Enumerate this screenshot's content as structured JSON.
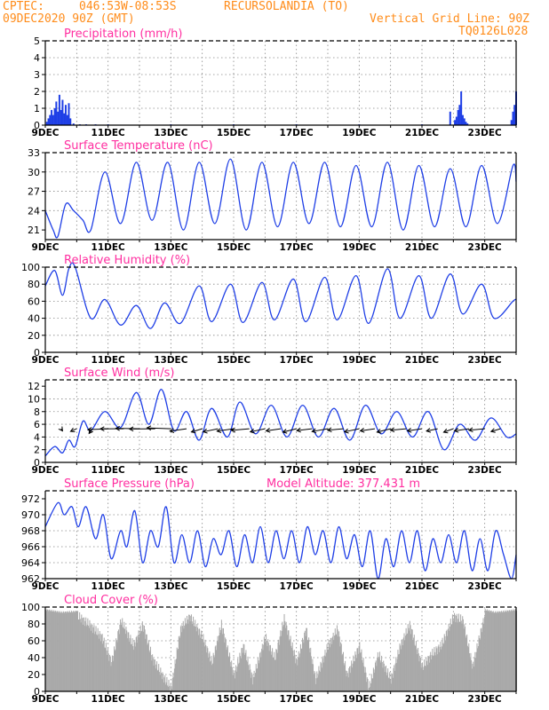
{
  "header": {
    "source": "CPTEC:",
    "coords": "046:53W-08:53S",
    "location": "RECURSOLANDIA (TO)",
    "init_time": "09DEC2020 90Z (GMT)",
    "grid_note": "Vertical Grid Line: 90Z",
    "code": "TQ0126L028"
  },
  "colors": {
    "header": "#ff8c1a",
    "title": "#ff2fa0",
    "line": "#1f3fe6",
    "cloud": "#a9a9a9",
    "wind_arrow": "#000000"
  },
  "chart_data": [
    {
      "type": "bar",
      "title": "Precipitation (mm/h)",
      "ylim": [
        0,
        5
      ],
      "yticks": [
        0,
        1,
        2,
        3,
        4,
        5
      ],
      "xticks": [
        "9DEC",
        "11DEC",
        "13DEC",
        "15DEC",
        "17DEC",
        "19DEC",
        "21DEC",
        "23DEC"
      ],
      "xlim_days": [
        0,
        15
      ],
      "x_day": [
        0.05,
        0.1,
        0.15,
        0.2,
        0.25,
        0.3,
        0.35,
        0.4,
        0.45,
        0.5,
        0.55,
        0.6,
        0.65,
        0.7,
        0.75,
        0.8,
        0.9,
        1.1,
        1.3,
        1.6,
        2.0,
        4.0,
        6.0,
        8.0,
        10.0,
        12.0,
        12.9,
        13.05,
        13.1,
        13.15,
        13.2,
        13.25,
        13.3,
        13.35,
        13.4,
        13.45,
        14.85,
        14.9,
        14.95,
        15.0
      ],
      "values": [
        0.2,
        0.4,
        0.6,
        0.9,
        0.6,
        1.0,
        1.4,
        0.8,
        1.8,
        0.9,
        1.5,
        0.7,
        1.2,
        0.6,
        1.3,
        0.4,
        0.1,
        0.05,
        0.05,
        0.05,
        0.05,
        0.05,
        0.05,
        0.05,
        0.05,
        0.05,
        0.8,
        0.3,
        0.5,
        0.9,
        1.2,
        2.0,
        0.6,
        0.4,
        0.2,
        0.1,
        0.3,
        0.8,
        1.2,
        2.0
      ]
    },
    {
      "type": "line",
      "title": "Surface Temperature (nC)",
      "ylim": [
        19.5,
        33
      ],
      "yticks": [
        21,
        24,
        27,
        30,
        33
      ],
      "xticks": [
        "9DEC",
        "11DEC",
        "13DEC",
        "15DEC",
        "17DEC",
        "19DEC",
        "21DEC",
        "23DEC"
      ],
      "xlim_days": [
        0,
        15
      ],
      "x_day": [
        0,
        0.25,
        0.4,
        0.65,
        0.9,
        1.2,
        1.45,
        1.9,
        2.4,
        2.9,
        3.4,
        3.9,
        4.4,
        4.9,
        5.4,
        5.9,
        6.4,
        6.9,
        7.4,
        7.9,
        8.4,
        8.9,
        9.4,
        9.9,
        10.4,
        10.9,
        11.4,
        11.9,
        12.4,
        12.9,
        13.4,
        13.9,
        14.4,
        14.9,
        15.0
      ],
      "values": [
        24,
        21,
        20,
        25,
        24,
        22.5,
        21,
        30,
        22,
        31.5,
        22.5,
        31.5,
        21,
        31.5,
        22,
        32,
        21,
        31.5,
        21.5,
        31.5,
        22,
        31.5,
        21.5,
        31,
        21.5,
        31.5,
        21,
        31,
        21.5,
        30.5,
        21.5,
        31,
        22,
        31,
        28.5
      ]
    },
    {
      "type": "line",
      "title": "Relative Humidity (%)",
      "ylim": [
        0,
        100
      ],
      "yticks": [
        0,
        20,
        40,
        60,
        80,
        100
      ],
      "xticks": [
        "9DEC",
        "11DEC",
        "13DEC",
        "15DEC",
        "17DEC",
        "19DEC",
        "21DEC",
        "23DEC"
      ],
      "xlim_days": [
        0,
        15
      ],
      "x_day": [
        0,
        0.3,
        0.55,
        0.75,
        0.95,
        1.45,
        1.9,
        2.4,
        2.9,
        3.35,
        3.8,
        4.3,
        4.9,
        5.3,
        5.9,
        6.3,
        6.9,
        7.3,
        7.9,
        8.3,
        8.9,
        9.3,
        9.9,
        10.3,
        10.9,
        11.3,
        11.9,
        12.3,
        12.9,
        13.3,
        13.9,
        14.3,
        14.9,
        15.0
      ],
      "values": [
        78,
        96,
        67,
        98,
        100,
        40,
        62,
        32,
        55,
        28,
        58,
        34,
        78,
        36,
        80,
        35,
        82,
        38,
        86,
        36,
        88,
        38,
        90,
        34,
        98,
        40,
        90,
        40,
        92,
        45,
        80,
        40,
        60,
        62
      ]
    },
    {
      "type": "line",
      "title": "Surface Wind (m/s)",
      "ylim": [
        0,
        13
      ],
      "yticks": [
        0,
        2,
        4,
        6,
        8,
        10,
        12
      ],
      "xticks": [
        "9DEC",
        "11DEC",
        "13DEC",
        "15DEC",
        "17DEC",
        "19DEC",
        "21DEC",
        "23DEC"
      ],
      "xlim_days": [
        0,
        15
      ],
      "x_day": [
        0,
        0.3,
        0.55,
        0.75,
        0.95,
        1.2,
        1.45,
        1.9,
        2.4,
        2.9,
        3.3,
        3.7,
        4.1,
        4.5,
        4.9,
        5.3,
        5.8,
        6.2,
        6.7,
        7.2,
        7.7,
        8.2,
        8.7,
        9.2,
        9.7,
        10.2,
        10.7,
        11.2,
        11.7,
        12.2,
        12.7,
        13.2,
        13.7,
        14.2,
        14.7,
        15.0
      ],
      "values": [
        1,
        2.5,
        1.5,
        3.5,
        2.5,
        6.5,
        5,
        8,
        5.5,
        11,
        6,
        11.5,
        5,
        8,
        3.5,
        8.5,
        4,
        9.5,
        4.5,
        9,
        4,
        9,
        4,
        8.5,
        3.5,
        9,
        4.5,
        8,
        4,
        8,
        2,
        6,
        3.5,
        7,
        4,
        4.5
      ],
      "arrows": {
        "x_day": [
          0.5,
          1.0,
          1.5,
          2.0,
          2.5,
          3.0,
          3.5,
          4.0,
          4.5,
          5.0,
          5.5,
          6.0,
          6.5,
          7.0,
          7.5,
          8.0,
          8.5,
          9.0,
          9.5,
          10.0,
          10.5,
          11.0,
          11.5,
          12.0,
          12.5,
          13.0,
          13.5,
          14.0,
          14.5
        ],
        "dir_deg": [
          350,
          30,
          10,
          70,
          80,
          85,
          80,
          90,
          60,
          40,
          50,
          60,
          70,
          50,
          60,
          45,
          65,
          55,
          70,
          50,
          60,
          45,
          70,
          60,
          50,
          35,
          60,
          70,
          40
        ],
        "speed": [
          1.5,
          3,
          6,
          7,
          8,
          8,
          9,
          8,
          6,
          5,
          6,
          6,
          6,
          6,
          5,
          6,
          5,
          6,
          5,
          6,
          5,
          6,
          5,
          5,
          4,
          5,
          5,
          5,
          4
        ]
      }
    },
    {
      "type": "line",
      "title": "Surface Pressure (hPa)",
      "annotation": "Model Altitude: 377.431 m",
      "ylim": [
        962,
        973
      ],
      "yticks": [
        962,
        964,
        966,
        968,
        970,
        972
      ],
      "xticks": [
        "9DEC",
        "11DEC",
        "13DEC",
        "15DEC",
        "17DEC",
        "19DEC",
        "21DEC",
        "23DEC"
      ],
      "xlim_days": [
        0,
        15
      ],
      "x_day": [
        0,
        0.4,
        0.6,
        0.85,
        1.05,
        1.3,
        1.6,
        1.85,
        2.1,
        2.4,
        2.6,
        2.85,
        3.1,
        3.35,
        3.6,
        3.85,
        4.1,
        4.35,
        4.6,
        4.85,
        5.1,
        5.35,
        5.6,
        5.85,
        6.1,
        6.35,
        6.6,
        6.85,
        7.1,
        7.35,
        7.6,
        7.85,
        8.1,
        8.35,
        8.6,
        8.85,
        9.1,
        9.35,
        9.6,
        9.85,
        10.1,
        10.35,
        10.6,
        10.85,
        11.1,
        11.35,
        11.6,
        11.85,
        12.1,
        12.35,
        12.6,
        12.85,
        13.1,
        13.35,
        13.6,
        13.85,
        14.1,
        14.35,
        14.6,
        14.85,
        15.0
      ],
      "values": [
        968.5,
        971.5,
        970,
        971,
        968.5,
        971,
        967,
        970,
        964.5,
        968,
        966,
        970.5,
        964,
        968,
        966,
        971,
        964,
        967.5,
        964,
        968,
        963.5,
        967,
        965,
        968,
        963.5,
        967.5,
        964,
        968.5,
        964,
        968,
        964.5,
        968,
        964,
        968.5,
        965,
        968,
        964,
        968.5,
        964.5,
        967.5,
        963.5,
        968,
        962,
        967,
        963.5,
        968,
        964,
        968,
        963,
        967,
        964,
        967.5,
        964,
        968,
        963,
        967,
        963,
        968,
        965,
        961.5,
        965
      ]
    },
    {
      "type": "bar",
      "title": "Cloud Cover (%)",
      "ylim": [
        0,
        100
      ],
      "yticks": [
        0,
        20,
        40,
        60,
        80,
        100
      ],
      "xticks": [
        "9DEC",
        "11DEC",
        "13DEC",
        "15DEC",
        "17DEC",
        "19DEC",
        "21DEC",
        "23DEC"
      ],
      "xlim_days": [
        0,
        15
      ],
      "x_day": [
        0,
        0.5,
        1.0,
        1.4,
        1.8,
        2.1,
        2.4,
        2.8,
        3.1,
        3.4,
        3.8,
        4.0,
        4.3,
        4.6,
        5.0,
        5.3,
        5.6,
        6.0,
        6.3,
        6.6,
        7.0,
        7.3,
        7.6,
        8.0,
        8.3,
        8.6,
        9.0,
        9.3,
        9.6,
        10.0,
        10.3,
        10.6,
        11.0,
        11.3,
        11.6,
        12.0,
        12.3,
        12.6,
        13.0,
        13.3,
        13.6,
        14.0,
        14.3,
        14.6,
        15.0
      ],
      "values": [
        98,
        95,
        96,
        85,
        70,
        40,
        90,
        60,
        85,
        45,
        20,
        10,
        80,
        95,
        70,
        40,
        85,
        25,
        60,
        20,
        70,
        45,
        92,
        40,
        80,
        20,
        60,
        80,
        25,
        60,
        10,
        50,
        20,
        60,
        85,
        35,
        50,
        60,
        95,
        90,
        35,
        98,
        95,
        96,
        98
      ]
    }
  ]
}
